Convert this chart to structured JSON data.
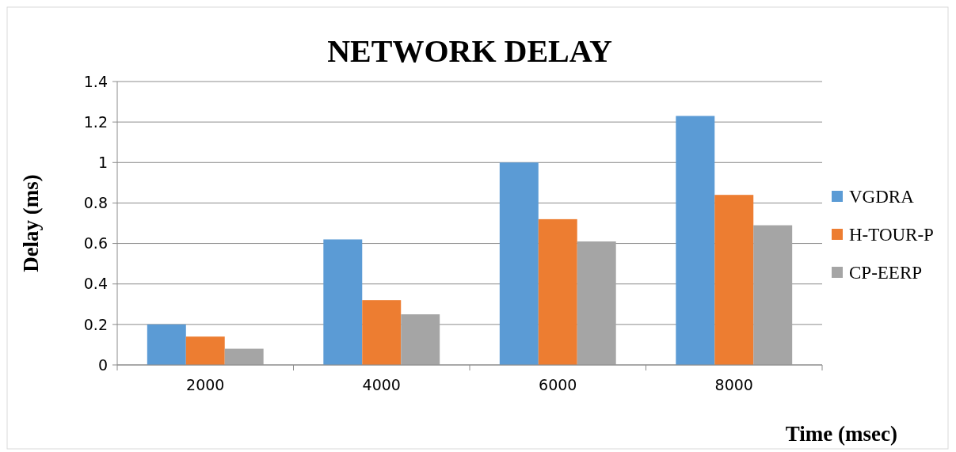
{
  "chart_data": {
    "type": "bar",
    "title": "NETWORK DELAY",
    "xlabel": "Time (msec)",
    "ylabel": "Delay (ms)",
    "categories": [
      "2000",
      "4000",
      "6000",
      "8000"
    ],
    "series": [
      {
        "name": "VGDRA",
        "color": "#5b9bd5",
        "values": [
          0.2,
          0.62,
          1.0,
          1.23
        ]
      },
      {
        "name": "H-TOUR-P",
        "color": "#ed7d31",
        "values": [
          0.14,
          0.32,
          0.72,
          0.84
        ]
      },
      {
        "name": "CP-EERP",
        "color": "#a5a5a5",
        "values": [
          0.08,
          0.25,
          0.61,
          0.69
        ]
      }
    ],
    "ylim": [
      0,
      1.4
    ],
    "yticks": [
      0,
      0.2,
      0.4,
      0.6,
      0.8,
      1,
      1.2,
      1.4
    ],
    "grid": "y",
    "legend": "right"
  }
}
